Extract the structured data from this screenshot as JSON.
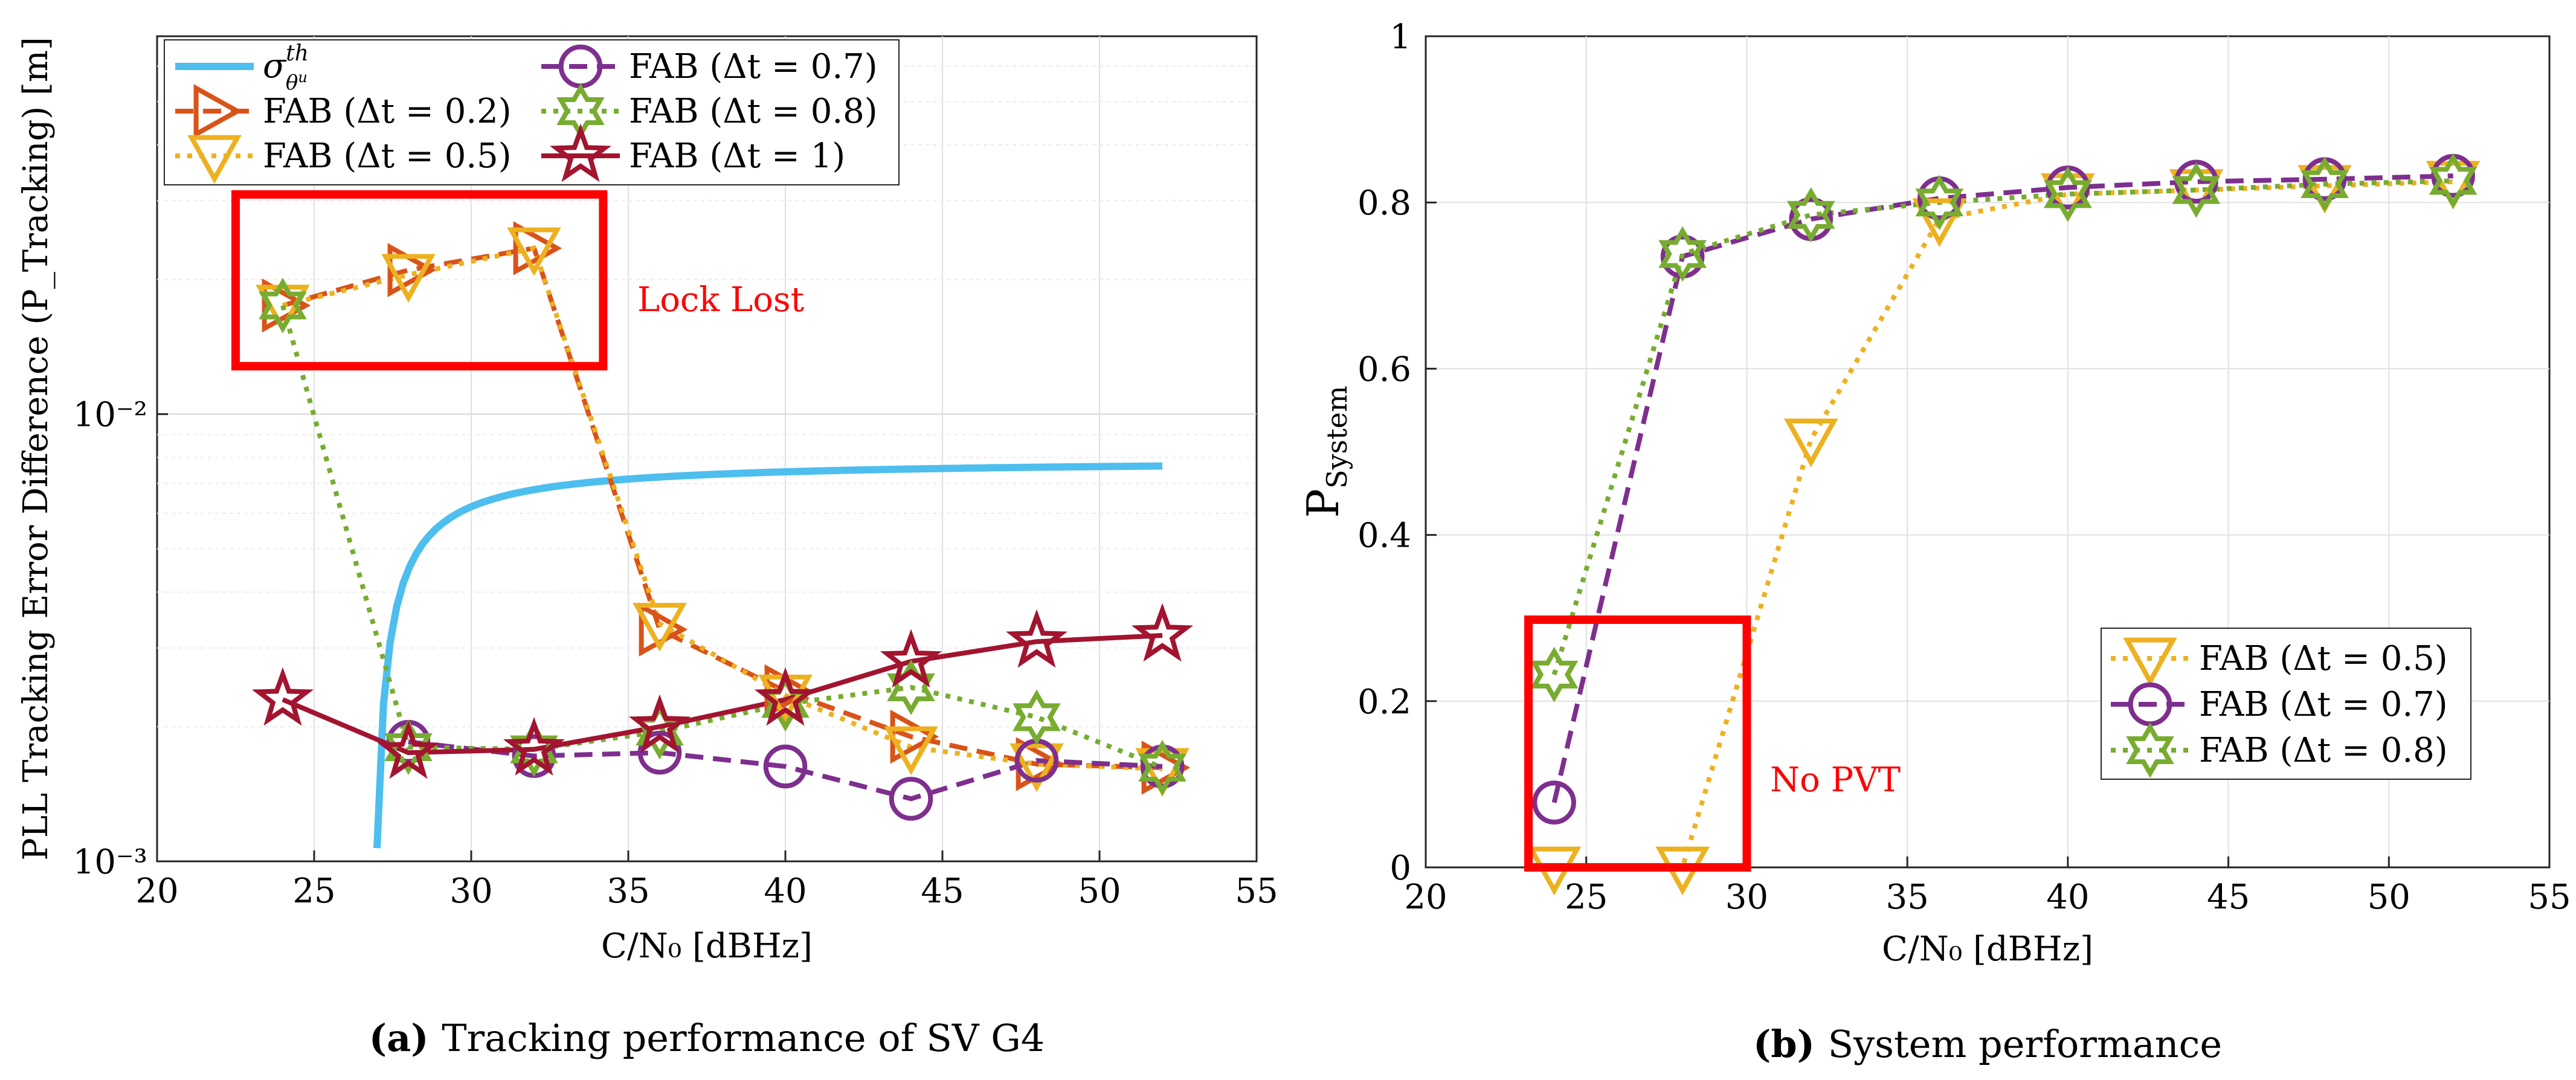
{
  "chart_data": [
    {
      "type": "line",
      "panel_label": "a",
      "caption": "Tracking performance of SV G4",
      "xlabel": "C/N₀ [dBHz]",
      "ylabel": "PLL Tracking Error Difference (P_Tracking) [m]",
      "xlim": [
        20,
        55
      ],
      "ylim": [
        0.001,
        0.07
      ],
      "yscale": "log",
      "xticks": [
        20,
        25,
        30,
        35,
        40,
        45,
        50,
        55
      ],
      "yticks": [
        {
          "value": 0.001,
          "label": "10⁻³"
        },
        {
          "value": 0.01,
          "label": "10⁻²"
        }
      ],
      "grid": true,
      "legend_position": "top-left",
      "threshold_curve": {
        "name": "σᵗʰ θᵘ",
        "color": "#4DBEEE",
        "x_start": 27,
        "x_end": 52,
        "asymptote": 0.00792,
        "coefficient": 0.00685
      },
      "series": [
        {
          "name": "FAB (Δt = 0.2)",
          "color": "#D95319",
          "marker": "triangle-right",
          "dash": "dashed",
          "x": [
            24,
            28,
            32,
            36,
            40,
            44,
            48,
            52
          ],
          "values": [
            0.0175,
            0.021,
            0.0235,
            0.0033,
            0.0024,
            0.0019,
            0.00165,
            0.00162
          ]
        },
        {
          "name": "FAB (Δt = 0.5)",
          "color": "#EDB120",
          "marker": "triangle-down",
          "dash": "dotted",
          "x": [
            24,
            28,
            32,
            36,
            40,
            44,
            48,
            52
          ],
          "values": [
            0.0175,
            0.0205,
            0.0235,
            0.0034,
            0.00235,
            0.0018,
            0.00165,
            0.00161
          ]
        },
        {
          "name": "FAB (Δt = 0.7)",
          "color": "#7E2F8E",
          "marker": "circle",
          "dash": "dashed",
          "x": [
            28,
            32,
            36,
            40,
            44,
            48,
            52
          ],
          "values": [
            0.00185,
            0.00172,
            0.00175,
            0.00163,
            0.00138,
            0.00168,
            0.00163
          ]
        },
        {
          "name": "FAB (Δt = 0.8)",
          "color": "#77AC30",
          "marker": "hexagram",
          "dash": "dotted",
          "x": [
            24,
            28,
            32,
            36,
            40,
            44,
            48,
            52
          ],
          "values": [
            0.0175,
            0.0018,
            0.00178,
            0.00195,
            0.00225,
            0.00245,
            0.0021,
            0.00162
          ]
        },
        {
          "name": "FAB (Δt = 1)",
          "color": "#A2142F",
          "marker": "pentagram",
          "dash": "solid",
          "x": [
            24,
            28,
            32,
            36,
            40,
            44,
            48,
            52
          ],
          "values": [
            0.0023,
            0.00175,
            0.00178,
            0.002,
            0.0023,
            0.0028,
            0.0031,
            0.0032
          ]
        }
      ],
      "annotations": [
        {
          "text": "Lock Lost",
          "box_x": [
            22.5,
            34.2
          ],
          "box_y": [
            0.0128,
            0.031
          ],
          "color": "#FF0000"
        }
      ]
    },
    {
      "type": "line",
      "panel_label": "b",
      "caption": "System performance",
      "xlabel": "C/N₀ [dBHz]",
      "ylabel": "P_System",
      "xlim": [
        20,
        55
      ],
      "ylim": [
        0,
        1
      ],
      "xticks": [
        20,
        25,
        30,
        35,
        40,
        45,
        50,
        55
      ],
      "yticks": [
        0,
        0.2,
        0.4,
        0.6,
        0.8,
        1
      ],
      "ytick_labels": [
        "0",
        "0.2",
        "0.4",
        "0.6",
        "0.8",
        "1"
      ],
      "grid": true,
      "legend_position": "bottom-right",
      "series": [
        {
          "name": "FAB (Δt = 0.5)",
          "color": "#EDB120",
          "marker": "triangle-down",
          "dash": "dotted",
          "x": [
            24,
            28,
            32,
            36,
            40,
            44,
            48,
            52
          ],
          "values": [
            0,
            0,
            0.515,
            0.78,
            0.81,
            0.815,
            0.82,
            0.825
          ]
        },
        {
          "name": "FAB (Δt = 0.7)",
          "color": "#7E2F8E",
          "marker": "circle",
          "dash": "dashed",
          "x": [
            24,
            28,
            32,
            36,
            40,
            44,
            48,
            52
          ],
          "values": [
            0.078,
            0.735,
            0.78,
            0.805,
            0.818,
            0.825,
            0.828,
            0.832
          ]
        },
        {
          "name": "FAB (Δt = 0.8)",
          "color": "#77AC30",
          "marker": "hexagram",
          "dash": "dotted",
          "x": [
            24,
            28,
            32,
            36,
            40,
            44,
            48,
            52
          ],
          "values": [
            0.232,
            0.738,
            0.785,
            0.8,
            0.81,
            0.815,
            0.822,
            0.826
          ]
        }
      ],
      "annotations": [
        {
          "text": "No PVT",
          "box_x": [
            23.2,
            30
          ],
          "box_y": [
            0,
            0.298
          ],
          "color": "#FF0000"
        }
      ]
    }
  ]
}
